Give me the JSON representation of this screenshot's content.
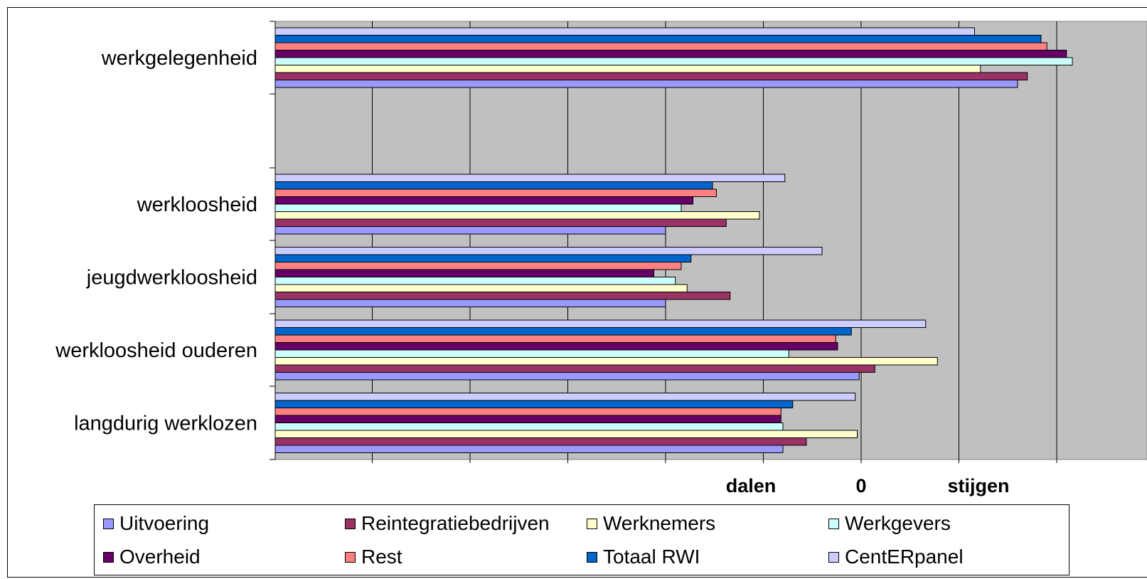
{
  "chart_data": {
    "type": "bar",
    "orientation": "horizontal",
    "title": "",
    "categories": [
      "werkgelegenheid",
      "werkloosheid",
      "jeugdwerkloosheid",
      "werkloosheid ouderen",
      "langdurig werklozen"
    ],
    "x_labels": {
      "left": "dalen",
      "center": "0",
      "right": "stijgen"
    },
    "xlim": [
      -3,
      1.5
    ],
    "grid": true,
    "legend_position": "bottom",
    "series": [
      {
        "name": "Uitvoering",
        "color": "#9999FF",
        "values": [
          0.8,
          -1.0,
          -1.0,
          -0.01,
          -0.4
        ]
      },
      {
        "name": "Reintegratiebedrijven",
        "color": "#993366",
        "values": [
          0.85,
          -0.69,
          -0.67,
          0.07,
          -0.28
        ]
      },
      {
        "name": "Werknemers",
        "color": "#FFFFCC",
        "values": [
          0.61,
          -0.52,
          -0.89,
          0.39,
          -0.02
        ]
      },
      {
        "name": "Werkgevers",
        "color": "#CCFFFF",
        "values": [
          1.08,
          -0.92,
          -0.95,
          -0.37,
          -0.4
        ]
      },
      {
        "name": "Overheid",
        "color": "#660066",
        "values": [
          1.05,
          -0.86,
          -1.06,
          -0.12,
          -0.41
        ]
      },
      {
        "name": "Rest",
        "color": "#FF8080",
        "values": [
          0.95,
          -0.74,
          -0.92,
          -0.13,
          -0.41
        ]
      },
      {
        "name": "Totaal RWI",
        "color": "#0066CC",
        "values": [
          0.92,
          -0.76,
          -0.87,
          -0.05,
          -0.35
        ]
      },
      {
        "name": "CentERpanel",
        "color": "#CCCCFF",
        "values": [
          0.58,
          -0.39,
          -0.2,
          0.33,
          -0.03
        ]
      }
    ]
  }
}
